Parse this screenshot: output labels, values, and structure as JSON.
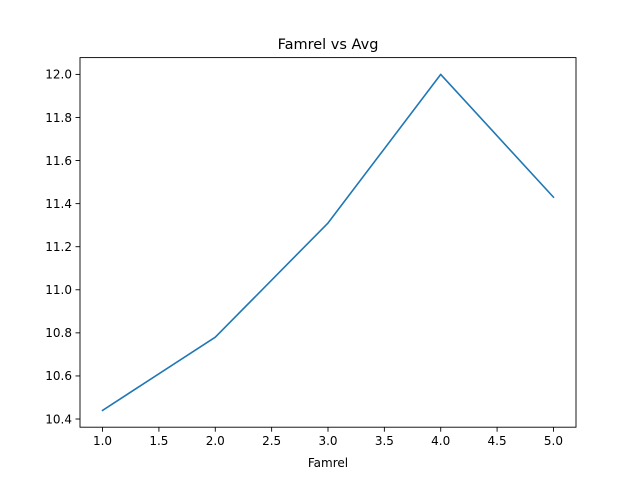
{
  "chart_data": {
    "type": "line",
    "title": "Famrel vs Avg",
    "xlabel": "Famrel",
    "ylabel": "",
    "x": [
      1.0,
      2.0,
      3.0,
      4.0,
      5.0
    ],
    "series": [
      {
        "values": [
          10.44,
          10.78,
          11.31,
          12.0,
          11.43
        ],
        "color": "#1f77b4"
      }
    ],
    "xlim": [
      0.8,
      5.2
    ],
    "ylim": [
      10.362,
      12.078
    ],
    "xticks": [
      1.0,
      1.5,
      2.0,
      2.5,
      3.0,
      3.5,
      4.0,
      4.5,
      5.0
    ],
    "xtick_labels": [
      "1.0",
      "1.5",
      "2.0",
      "2.5",
      "3.0",
      "3.5",
      "4.0",
      "4.5",
      "5.0"
    ],
    "yticks": [
      10.4,
      10.6,
      10.8,
      11.0,
      11.2,
      11.4,
      11.6,
      11.8,
      12.0
    ],
    "ytick_labels": [
      "10.4",
      "10.6",
      "10.8",
      "11.0",
      "11.2",
      "11.4",
      "11.6",
      "11.8",
      "12.0"
    ],
    "grid": false,
    "legend": "none"
  }
}
